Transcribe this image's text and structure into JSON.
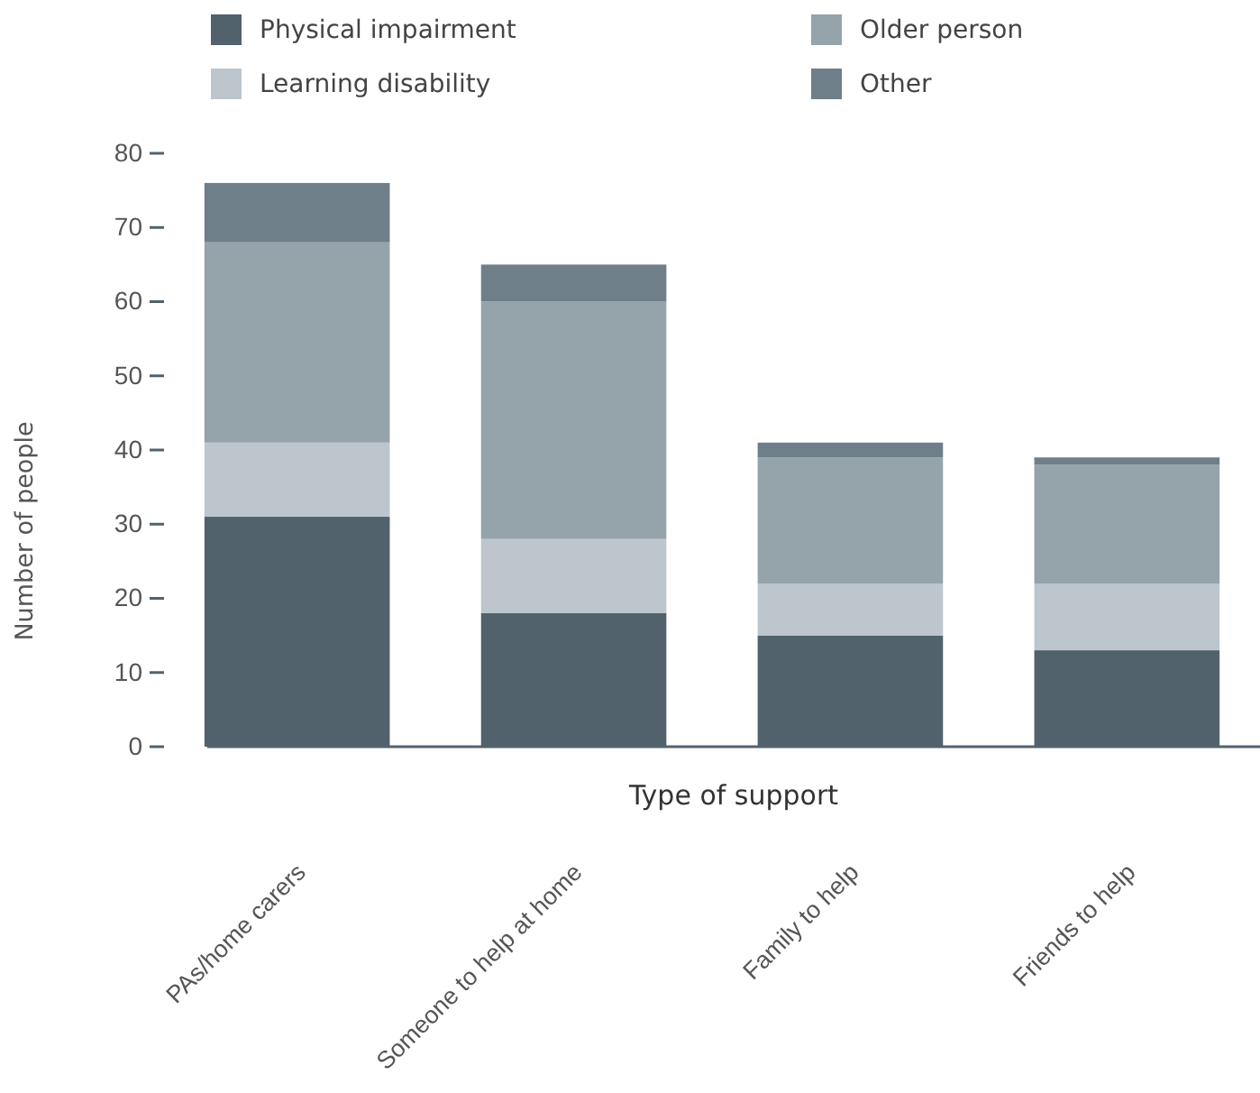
{
  "chart_data": {
    "type": "bar",
    "stacked": true,
    "xlabel": "Type of support",
    "ylabel": "Number of people",
    "categories": [
      "PAs/home carers",
      "Someone to help at home",
      "Family to help",
      "Friends to help"
    ],
    "series": [
      {
        "name": "Physical impairment",
        "color": "#52626d",
        "values": [
          31,
          18,
          15,
          13
        ]
      },
      {
        "name": "Learning disability",
        "color": "#bcc6cc",
        "values": [
          10,
          10,
          7,
          9
        ]
      },
      {
        "name": "Older person",
        "color": "#95a3ab",
        "values": [
          27,
          32,
          17,
          16
        ]
      },
      {
        "name": "Other",
        "color": "#6f7f89",
        "values": [
          8,
          5,
          2,
          1
        ]
      }
    ],
    "ylim": [
      0,
      80
    ],
    "yticks": [
      0,
      10,
      20,
      30,
      40,
      50,
      60,
      70,
      80
    ],
    "grid": false,
    "legend": "top left"
  }
}
